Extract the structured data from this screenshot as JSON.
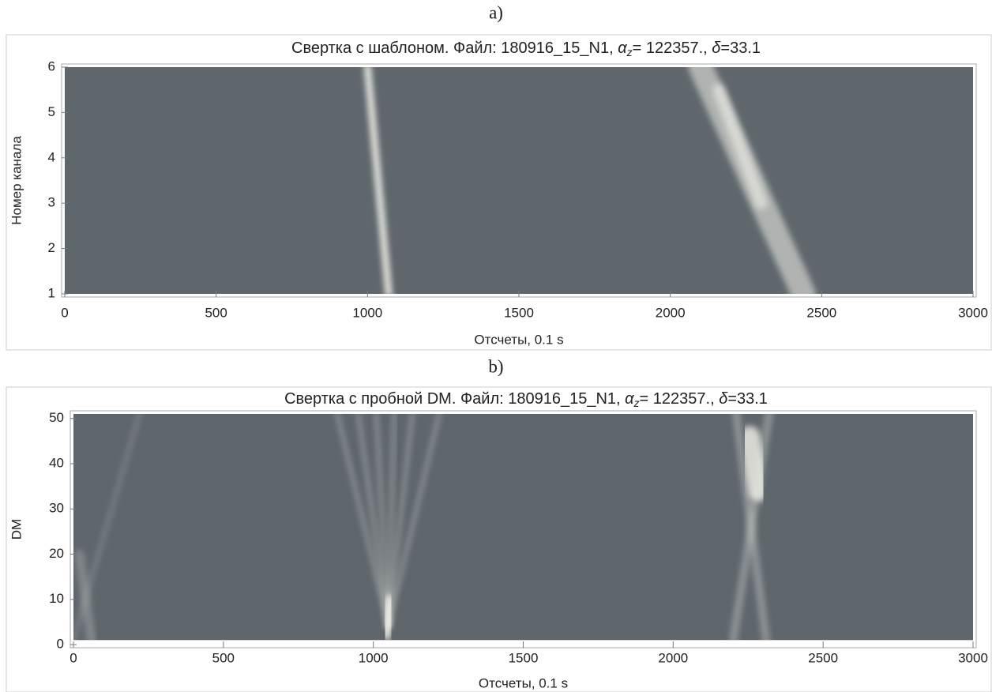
{
  "chart_data": [
    {
      "type": "heatmap",
      "panel_label": "a)",
      "title": [
        "Свертка с шаблоном.  Файл: 180916_15_N1, ",
        "α",
        "z",
        "= 122357., ",
        "δ",
        "=33.1"
      ],
      "xlabel": "Отсчеты, 0.1 s",
      "ylabel": "Номер канала",
      "xlim": [
        0,
        3000
      ],
      "ylim": [
        1,
        6
      ],
      "xticks": [
        0,
        500,
        1000,
        1500,
        2000,
        2500,
        3000
      ],
      "yticks": [
        1,
        2,
        3,
        4,
        5,
        6
      ],
      "extent": {
        "x": [
          0,
          3000
        ],
        "y": [
          1,
          6
        ]
      },
      "color": "#5f666c",
      "streak_color": "#f2f2ea",
      "streaks": [
        {
          "x": [
            1000,
            1070
          ],
          "y": [
            6,
            1
          ],
          "width": 22,
          "opacity": 0.95
        },
        {
          "x": [
            2100,
            2440
          ],
          "y": [
            6,
            1
          ],
          "width": 80,
          "opacity": 0.55
        },
        {
          "x": [
            2160,
            2300
          ],
          "y": [
            5.5,
            3
          ],
          "width": 40,
          "opacity": 0.6
        }
      ]
    },
    {
      "type": "heatmap",
      "panel_label": "b)",
      "title": [
        "Свертка с пробной DM. Файл: 180916_15_N1, ",
        "α",
        "z",
        "= 122357., ",
        "δ",
        "=33.1"
      ],
      "xlabel": "Отсчеты, 0.1 s",
      "ylabel": "DM",
      "xlim": [
        0,
        3000
      ],
      "ylim": [
        0,
        51
      ],
      "xticks": [
        0,
        500,
        1000,
        1500,
        2000,
        2500,
        3000
      ],
      "yticks": [
        0,
        10,
        20,
        30,
        40,
        50
      ],
      "extent": {
        "x": [
          0,
          3000
        ],
        "y": [
          1,
          51
        ]
      },
      "color": "#5e656b",
      "streak_color": "#f2f2ea",
      "streaks": [
        {
          "x": [
            1050,
            880
          ],
          "y": [
            4,
            51
          ],
          "width": 10,
          "opacity": 0.45
        },
        {
          "x": [
            1050,
            950
          ],
          "y": [
            4,
            51
          ],
          "width": 10,
          "opacity": 0.45
        },
        {
          "x": [
            1050,
            1010
          ],
          "y": [
            4,
            51
          ],
          "width": 10,
          "opacity": 0.45
        },
        {
          "x": [
            1050,
            1070
          ],
          "y": [
            4,
            51
          ],
          "width": 10,
          "opacity": 0.45
        },
        {
          "x": [
            1050,
            1130
          ],
          "y": [
            4,
            51
          ],
          "width": 10,
          "opacity": 0.45
        },
        {
          "x": [
            1050,
            1220
          ],
          "y": [
            4,
            51
          ],
          "width": 10,
          "opacity": 0.45
        },
        {
          "x": [
            1045,
            1055
          ],
          "y": [
            2,
            10
          ],
          "width": 30,
          "opacity": 0.9
        },
        {
          "x": [
            2255,
            2285
          ],
          "y": [
            46,
            34
          ],
          "width": 70,
          "opacity": 0.8
        },
        {
          "x": [
            2200,
            2320
          ],
          "y": [
            1,
            51
          ],
          "width": 25,
          "opacity": 0.35
        },
        {
          "x": [
            2310,
            2210
          ],
          "y": [
            1,
            51
          ],
          "width": 25,
          "opacity": 0.35
        },
        {
          "x": [
            0,
            220
          ],
          "y": [
            1,
            51
          ],
          "width": 15,
          "opacity": 0.2
        },
        {
          "x": [
            60,
            20
          ],
          "y": [
            1,
            20
          ],
          "width": 30,
          "opacity": 0.25
        }
      ]
    }
  ]
}
